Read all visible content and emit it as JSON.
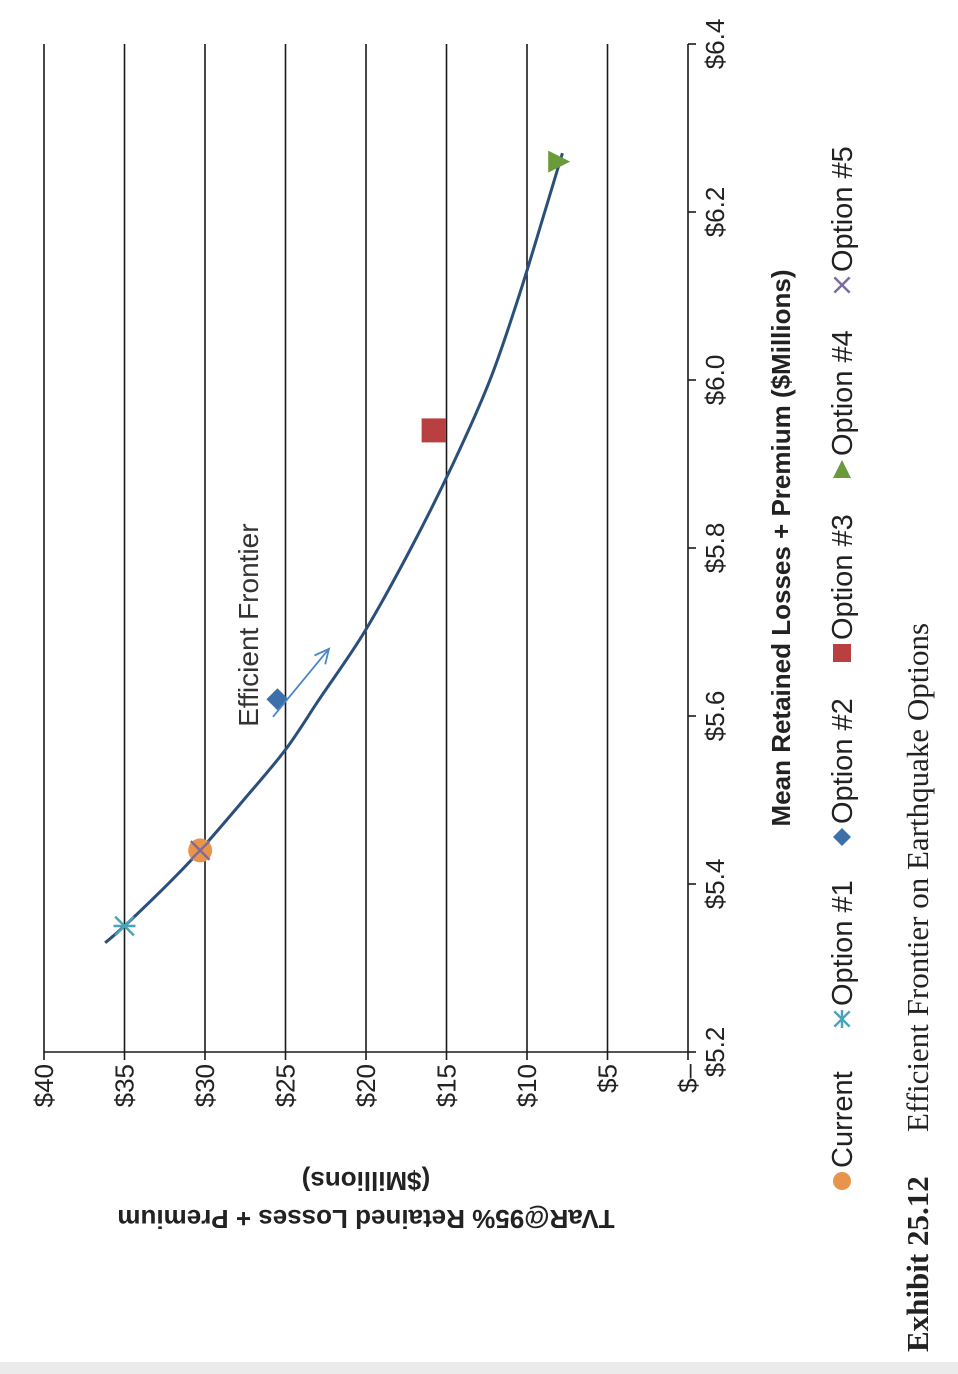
{
  "caption": {
    "exhibit": "Exhibit 25.12",
    "title": "Efficient Frontier on Earthquake Options"
  },
  "chart_data": {
    "type": "scatter",
    "xlabel": "Mean Retained Losses + Premium ($Millions)",
    "ylabel_line1": "TVaR@95% Retained Losses + Premium",
    "ylabel_line2": "($Millions)",
    "xlim": [
      5.2,
      6.4
    ],
    "ylim": [
      0,
      40
    ],
    "x_ticks": [
      {
        "value": 5.2,
        "label": "$5.2"
      },
      {
        "value": 5.4,
        "label": "$5.4"
      },
      {
        "value": 5.6,
        "label": "$5.6"
      },
      {
        "value": 5.8,
        "label": "$5.8"
      },
      {
        "value": 6.0,
        "label": "$6.0"
      },
      {
        "value": 6.2,
        "label": "$6.2"
      },
      {
        "value": 6.4,
        "label": "$6.4"
      }
    ],
    "y_ticks": [
      {
        "value": 0,
        "label": "$–"
      },
      {
        "value": 5,
        "label": "$5"
      },
      {
        "value": 10,
        "label": "$10"
      },
      {
        "value": 15,
        "label": "$15"
      },
      {
        "value": 20,
        "label": "$20"
      },
      {
        "value": 25,
        "label": "$25"
      },
      {
        "value": 30,
        "label": "$30"
      },
      {
        "value": 35,
        "label": "$35"
      },
      {
        "value": 40,
        "label": "$40"
      }
    ],
    "gridlines": "horizontal",
    "legend_position": "bottom",
    "series": [
      {
        "name": "Current",
        "marker": "circle",
        "color": "#e8944a",
        "x": 5.44,
        "y": 30.3
      },
      {
        "name": "Option #1",
        "marker": "asterisk",
        "color": "#4aa3b8",
        "x": 5.35,
        "y": 35.0
      },
      {
        "name": "Option #2",
        "marker": "diamond",
        "color": "#3d6fa8",
        "x": 5.62,
        "y": 25.5
      },
      {
        "name": "Option #3",
        "marker": "square",
        "color": "#b84040",
        "x": 5.94,
        "y": 15.8
      },
      {
        "name": "Option #4",
        "marker": "triangle",
        "color": "#6b9a3a",
        "x": 6.26,
        "y": 8.0
      },
      {
        "name": "Option #5",
        "marker": "x",
        "color": "#7a6aa0",
        "x": 5.44,
        "y": 30.3
      }
    ],
    "frontier": {
      "color": "#2a4f7a",
      "points": [
        [
          5.33,
          36.2
        ],
        [
          5.35,
          35.0
        ],
        [
          5.4,
          32.3
        ],
        [
          5.44,
          30.3
        ],
        [
          5.5,
          27.6
        ],
        [
          5.56,
          25.0
        ],
        [
          5.62,
          22.9
        ],
        [
          5.7,
          20.1
        ],
        [
          5.8,
          17.2
        ],
        [
          5.9,
          14.6
        ],
        [
          6.0,
          12.3
        ],
        [
          6.1,
          10.5
        ],
        [
          6.2,
          8.9
        ],
        [
          6.27,
          7.8
        ]
      ]
    },
    "annotation": {
      "text": "Efficient Frontier",
      "arrow_to": [
        5.68,
        22.3
      ]
    }
  }
}
